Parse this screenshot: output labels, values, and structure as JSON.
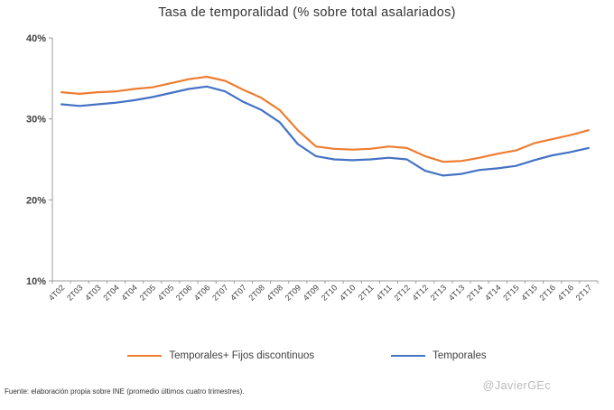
{
  "chart_data": {
    "type": "line",
    "title": "Tasa de temporalidad (%  sobre total asalariados)",
    "categories": [
      "4T02",
      "2T03",
      "4T03",
      "2T04",
      "4T04",
      "2T05",
      "4T05",
      "2T06",
      "4T06",
      "2T07",
      "4T07",
      "2T08",
      "4T08",
      "2T09",
      "4T09",
      "2T10",
      "4T10",
      "2T11",
      "4T11",
      "2T12",
      "4T12",
      "2T13",
      "4T13",
      "2T14",
      "4T14",
      "2T15",
      "4T15",
      "2T16",
      "4T16",
      "2T17"
    ],
    "series": [
      {
        "name": "Temporales+ Fijos discontinuos",
        "color": "#ED7D31",
        "values": [
          33.3,
          33.1,
          33.3,
          33.4,
          33.7,
          33.9,
          34.4,
          34.9,
          35.2,
          34.7,
          33.6,
          32.6,
          31.1,
          28.6,
          26.6,
          26.3,
          26.2,
          26.3,
          26.6,
          26.4,
          25.4,
          24.7,
          24.8,
          25.2,
          25.7,
          26.1,
          27.0,
          27.5,
          28.0,
          28.6
        ]
      },
      {
        "name": "Temporales",
        "color": "#4472C4",
        "values": [
          31.8,
          31.6,
          31.8,
          32.0,
          32.3,
          32.7,
          33.2,
          33.7,
          34.0,
          33.4,
          32.1,
          31.1,
          29.6,
          26.9,
          25.4,
          25.0,
          24.9,
          25.0,
          25.2,
          25.0,
          23.6,
          23.0,
          23.2,
          23.7,
          23.9,
          24.2,
          24.9,
          25.5,
          25.9,
          26.4
        ]
      }
    ],
    "ylim": [
      10,
      40
    ],
    "yticks": [
      "10%",
      "20%",
      "30%",
      "40%"
    ],
    "ytick_values": [
      10,
      20,
      30,
      40
    ],
    "grid": false,
    "legend_position": "bottom",
    "axis_color": "#9b9b9b",
    "label_color": "#404040"
  },
  "footer": {
    "source": "Fuente: elaboración  propia sobre INE (promedio últimos cuatro trimestres).",
    "watermark": "@JavierGEc"
  }
}
